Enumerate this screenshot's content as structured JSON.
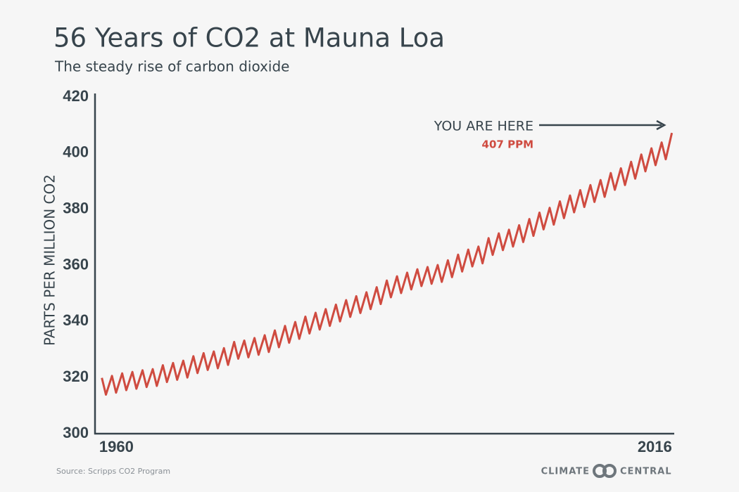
{
  "chart_data": {
    "type": "line",
    "title": "56 Years of CO2 at Mauna Loa",
    "subtitle": "The steady rise of carbon dioxide",
    "y_label": "PARTS PER MILLION CO2",
    "annotations": [
      "YOU ARE HERE",
      "407 PPM"
    ],
    "source": "Source: Scripps CO2 Program",
    "credit": [
      "CLIMATE",
      "CENTRAL"
    ],
    "color": "#cf4b40",
    "grid": false,
    "xlim": [
      1959.8,
      2016.5
    ],
    "xticks": [
      1960,
      2016
    ],
    "ylim": [
      300,
      420
    ],
    "yticks": [
      300,
      320,
      340,
      360,
      380,
      400,
      420
    ],
    "x": [
      1960.4,
      1960.8,
      1961.4,
      1961.8,
      1962.4,
      1962.8,
      1963.4,
      1963.8,
      1964.4,
      1964.8,
      1965.4,
      1965.8,
      1966.4,
      1966.8,
      1967.4,
      1967.8,
      1968.4,
      1968.8,
      1969.4,
      1969.8,
      1970.4,
      1970.8,
      1971.4,
      1971.8,
      1972.4,
      1972.8,
      1973.4,
      1973.8,
      1974.4,
      1974.8,
      1975.4,
      1975.8,
      1976.4,
      1976.8,
      1977.4,
      1977.8,
      1978.4,
      1978.8,
      1979.4,
      1979.8,
      1980.4,
      1980.8,
      1981.4,
      1981.8,
      1982.4,
      1982.8,
      1983.4,
      1983.8,
      1984.4,
      1984.8,
      1985.4,
      1985.8,
      1986.4,
      1986.8,
      1987.4,
      1987.8,
      1988.4,
      1988.8,
      1989.4,
      1989.8,
      1990.4,
      1990.8,
      1991.4,
      1991.8,
      1992.4,
      1992.8,
      1993.4,
      1993.8,
      1994.4,
      1994.8,
      1995.4,
      1995.8,
      1996.4,
      1996.8,
      1997.4,
      1997.8,
      1998.4,
      1998.8,
      1999.4,
      1999.8,
      2000.4,
      2000.8,
      2001.4,
      2001.8,
      2002.4,
      2002.8,
      2003.4,
      2003.8,
      2004.4,
      2004.8,
      2005.4,
      2005.8,
      2006.4,
      2006.8,
      2007.4,
      2007.8,
      2008.4,
      2008.8,
      2009.4,
      2009.8,
      2010.4,
      2010.8,
      2011.4,
      2011.8,
      2012.4,
      2012.8,
      2013.4,
      2013.8,
      2014.4,
      2014.8,
      2015.4,
      2015.8,
      2016.4
    ],
    "values": [
      319.9,
      313.9,
      320.6,
      314.6,
      321.5,
      315.5,
      322.0,
      316.0,
      322.6,
      316.6,
      323.0,
      317.0,
      324.4,
      318.4,
      325.2,
      319.2,
      326.0,
      320.0,
      327.6,
      321.6,
      328.7,
      322.7,
      329.3,
      323.3,
      330.5,
      324.5,
      332.7,
      326.7,
      333.2,
      327.2,
      334.1,
      328.1,
      335.1,
      329.1,
      336.8,
      330.8,
      338.4,
      332.4,
      339.8,
      333.8,
      341.7,
      335.7,
      343.1,
      337.1,
      344.4,
      338.4,
      346.0,
      340.0,
      347.6,
      341.6,
      349.0,
      343.0,
      350.4,
      344.4,
      352.2,
      346.2,
      354.6,
      348.6,
      356.1,
      350.1,
      357.4,
      351.4,
      358.6,
      352.6,
      359.4,
      353.4,
      360.1,
      354.1,
      361.8,
      355.8,
      363.8,
      357.8,
      365.6,
      359.6,
      366.7,
      360.7,
      369.7,
      363.7,
      371.4,
      365.4,
      372.7,
      366.7,
      374.3,
      368.3,
      376.5,
      370.5,
      378.8,
      372.8,
      380.5,
      374.5,
      382.8,
      376.8,
      384.9,
      378.9,
      386.8,
      380.8,
      388.6,
      382.6,
      390.4,
      384.4,
      392.9,
      386.9,
      394.6,
      388.6,
      396.9,
      390.9,
      399.5,
      393.5,
      401.7,
      395.7,
      403.8,
      397.8,
      407.2
    ]
  }
}
